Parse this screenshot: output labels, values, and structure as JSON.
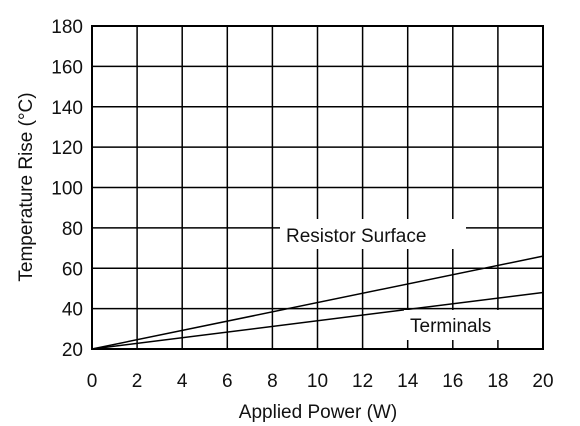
{
  "chart_data": {
    "type": "line",
    "xlabel": "Applied Power (W)",
    "ylabel": "Temperature Rise (°C)",
    "xlim": [
      0,
      20
    ],
    "ylim": [
      20,
      180
    ],
    "x_ticks": [
      "0",
      "2",
      "4",
      "6",
      "8",
      "10",
      "12",
      "14",
      "16",
      "18",
      "20"
    ],
    "y_ticks": [
      "20",
      "40",
      "60",
      "80",
      "100",
      "120",
      "140",
      "160",
      "180"
    ],
    "grid": true,
    "series": [
      {
        "name": "Resistor Surface",
        "x": [
          0,
          20
        ],
        "y": [
          20,
          66
        ]
      },
      {
        "name": "Terminals",
        "x": [
          0,
          20
        ],
        "y": [
          20,
          48
        ]
      }
    ]
  }
}
